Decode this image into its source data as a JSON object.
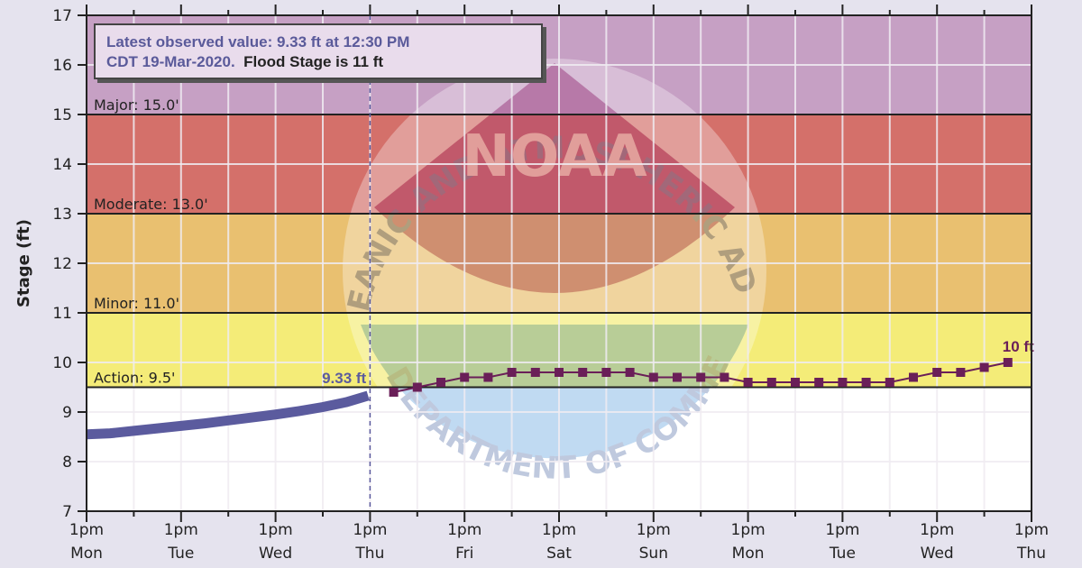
{
  "chart_data": {
    "type": "line",
    "ylabel": "Stage (ft)",
    "ylim": [
      7,
      17
    ],
    "yticks": [
      "7",
      "8",
      "9",
      "10",
      "11",
      "12",
      "13",
      "14",
      "15",
      "16",
      "17"
    ],
    "xlim": [
      "2020-03-16T13:00",
      "2020-03-26T13:00"
    ],
    "xticks": [
      {
        "time": "2020-03-16T13:00",
        "line1": "1pm",
        "line2": "Mon"
      },
      {
        "time": "2020-03-17T13:00",
        "line1": "1pm",
        "line2": "Tue"
      },
      {
        "time": "2020-03-18T13:00",
        "line1": "1pm",
        "line2": "Wed"
      },
      {
        "time": "2020-03-19T13:00",
        "line1": "1pm",
        "line2": "Thu"
      },
      {
        "time": "2020-03-20T13:00",
        "line1": "1pm",
        "line2": "Fri"
      },
      {
        "time": "2020-03-21T13:00",
        "line1": "1pm",
        "line2": "Sat"
      },
      {
        "time": "2020-03-22T13:00",
        "line1": "1pm",
        "line2": "Sun"
      },
      {
        "time": "2020-03-23T13:00",
        "line1": "1pm",
        "line2": "Mon"
      },
      {
        "time": "2020-03-24T13:00",
        "line1": "1pm",
        "line2": "Tue"
      },
      {
        "time": "2020-03-25T13:00",
        "line1": "1pm",
        "line2": "Wed"
      },
      {
        "time": "2020-03-26T13:00",
        "line1": "1pm",
        "line2": "Thu"
      }
    ],
    "grid": true,
    "flood_categories": [
      {
        "label": "Action: 9.5'",
        "from": 9.5,
        "to": 11,
        "color": "#f4ec78"
      },
      {
        "label": "Minor: 11.0'",
        "from": 11,
        "to": 13,
        "color": "#e9c070"
      },
      {
        "label": "Moderate: 13.0'",
        "from": 13,
        "to": 15,
        "color": "#d4706a"
      },
      {
        "label": "Major: 15.0'",
        "from": 15,
        "to": 17,
        "color": "#c6a0c4"
      }
    ],
    "legend": {
      "line1": "Latest observed value: 9.33 ft at 12:30 PM",
      "line2a": "CDT 19-Mar-2020.",
      "line2b": "Flood Stage is 11 ft",
      "placement": "top-left"
    },
    "observed": {
      "color": "#5b5b9e",
      "label": "9.33 ft",
      "times": [
        "2020-03-16T13:00",
        "2020-03-16T19:00",
        "2020-03-17T01:00",
        "2020-03-17T07:00",
        "2020-03-17T13:00",
        "2020-03-17T19:00",
        "2020-03-18T01:00",
        "2020-03-18T07:00",
        "2020-03-18T13:00",
        "2020-03-18T19:00",
        "2020-03-19T01:00",
        "2020-03-19T07:00",
        "2020-03-19T12:30"
      ],
      "values": [
        8.55,
        8.57,
        8.62,
        8.67,
        8.72,
        8.77,
        8.83,
        8.89,
        8.95,
        9.02,
        9.1,
        9.2,
        9.33
      ]
    },
    "forecast": {
      "color": "#6a1f58",
      "label": "10 ft",
      "times": [
        "2020-03-19T19:00",
        "2020-03-20T01:00",
        "2020-03-20T07:00",
        "2020-03-20T13:00",
        "2020-03-20T19:00",
        "2020-03-21T01:00",
        "2020-03-21T07:00",
        "2020-03-21T13:00",
        "2020-03-21T19:00",
        "2020-03-22T01:00",
        "2020-03-22T07:00",
        "2020-03-22T13:00",
        "2020-03-22T19:00",
        "2020-03-23T01:00",
        "2020-03-23T07:00",
        "2020-03-23T13:00",
        "2020-03-23T19:00",
        "2020-03-24T01:00",
        "2020-03-24T07:00",
        "2020-03-24T13:00",
        "2020-03-24T19:00",
        "2020-03-25T01:00",
        "2020-03-25T07:00",
        "2020-03-25T13:00",
        "2020-03-25T19:00",
        "2020-03-26T01:00",
        "2020-03-26T07:00"
      ],
      "values": [
        9.4,
        9.5,
        9.6,
        9.7,
        9.7,
        9.8,
        9.8,
        9.8,
        9.8,
        9.8,
        9.8,
        9.7,
        9.7,
        9.7,
        9.7,
        9.6,
        9.6,
        9.6,
        9.6,
        9.6,
        9.6,
        9.6,
        9.7,
        9.8,
        9.8,
        9.9,
        10.0
      ]
    },
    "latest_marker_time": "2020-03-19T13:00"
  },
  "watermark": {
    "logo_text": "NOAA",
    "ring_top": "NATIONAL OCEANIC AND ATMOSPHERIC ADMINISTRATION",
    "ring_bottom": "U.S. DEPARTMENT OF COMMERCE"
  }
}
